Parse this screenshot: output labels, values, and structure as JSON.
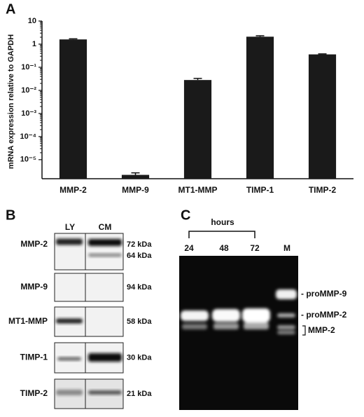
{
  "chart_data": {
    "type": "bar",
    "panel_label": "A",
    "ylabel": "mRNA expression relative to GAPDH",
    "categories": [
      "MMP-2",
      "MMP-9",
      "MT1-MMP",
      "TIMP-1",
      "TIMP-2"
    ],
    "values": [
      1.6,
      2.2e-06,
      0.028,
      2.1,
      0.36
    ],
    "errors": [
      0.1,
      5e-07,
      0.005,
      0.2,
      0.02
    ],
    "color": "#1a1a1a",
    "log_scale": true,
    "ylim": [
      1.5e-06,
      10
    ],
    "yticks": [
      10,
      1,
      {
        "value": 0.1,
        "label": "10⁻¹"
      },
      {
        "value": 0.01,
        "label": "10⁻²"
      },
      {
        "value": 0.001,
        "label": "10⁻³"
      },
      {
        "value": 0.0001,
        "label": "10⁻⁴"
      },
      {
        "value": 1e-05,
        "label": "10⁻⁵"
      }
    ]
  },
  "panel_b": {
    "label": "B",
    "columns": [
      "LY",
      "CM"
    ],
    "rows": [
      {
        "name": "MMP-2",
        "sizes": [
          "72 kDa",
          "64 kDa"
        ]
      },
      {
        "name": "MMP-9",
        "sizes": [
          "94 kDa"
        ]
      },
      {
        "name": "MT1-MMP",
        "sizes": [
          "58 kDa"
        ]
      },
      {
        "name": "TIMP-1",
        "sizes": [
          "30 kDa"
        ]
      },
      {
        "name": "TIMP-2",
        "sizes": [
          "21 kDa"
        ]
      }
    ]
  },
  "panel_c": {
    "label": "C",
    "group_label": "hours",
    "lanes": [
      "24",
      "48",
      "72",
      "M"
    ],
    "band_labels": [
      "- proMMP-9",
      "- proMMP-2",
      "MMP-2"
    ]
  }
}
